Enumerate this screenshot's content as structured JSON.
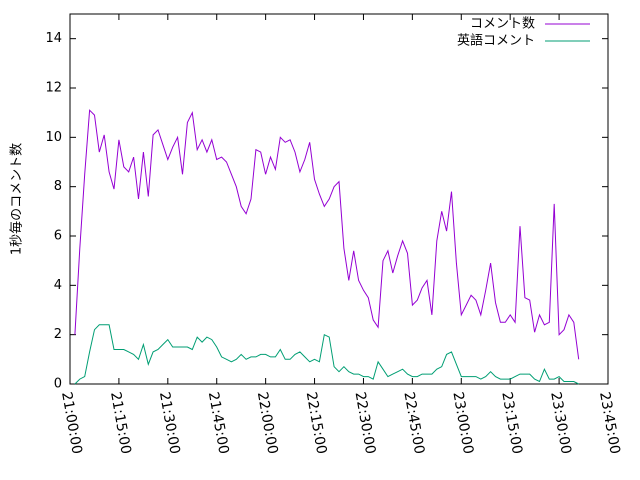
{
  "chart_data": {
    "type": "line",
    "y_label": "1秒毎のコメント数",
    "x": [
      "21:01:30",
      "21:03:00",
      "21:04:30",
      "21:06:00",
      "21:07:30",
      "21:09:00",
      "21:10:30",
      "21:12:00",
      "21:13:30",
      "21:15:00",
      "21:16:30",
      "21:18:00",
      "21:19:30",
      "21:21:00",
      "21:22:30",
      "21:24:00",
      "21:25:30",
      "21:27:00",
      "21:28:30",
      "21:30:00",
      "21:31:30",
      "21:33:00",
      "21:34:30",
      "21:36:00",
      "21:37:30",
      "21:39:00",
      "21:40:30",
      "21:42:00",
      "21:43:30",
      "21:45:00",
      "21:46:30",
      "21:48:00",
      "21:49:30",
      "21:51:00",
      "21:52:30",
      "21:54:00",
      "21:55:30",
      "21:57:00",
      "21:58:30",
      "22:00:00",
      "22:01:30",
      "22:03:00",
      "22:04:30",
      "22:06:00",
      "22:07:30",
      "22:09:00",
      "22:10:30",
      "22:12:00",
      "22:13:30",
      "22:15:00",
      "22:16:30",
      "22:18:00",
      "22:19:30",
      "22:21:00",
      "22:22:30",
      "22:24:00",
      "22:25:30",
      "22:27:00",
      "22:28:30",
      "22:30:00",
      "22:31:30",
      "22:33:00",
      "22:34:30",
      "22:36:00",
      "22:37:30",
      "22:39:00",
      "22:40:30",
      "22:42:00",
      "22:43:30",
      "22:45:00",
      "22:46:30",
      "22:48:00",
      "22:49:30",
      "22:51:00",
      "22:52:30",
      "22:54:00",
      "22:55:30",
      "22:57:00",
      "22:58:30",
      "23:00:00",
      "23:01:30",
      "23:03:00",
      "23:04:30",
      "23:06:00",
      "23:07:30",
      "23:09:00",
      "23:10:30",
      "23:12:00",
      "23:13:30",
      "23:15:00",
      "23:16:30",
      "23:18:00",
      "23:19:30",
      "23:21:00",
      "23:22:30",
      "23:24:00",
      "23:25:30",
      "23:27:00",
      "23:28:30",
      "23:30:00",
      "23:31:30",
      "23:33:00",
      "23:34:30",
      "23:36:00"
    ],
    "series": [
      {
        "name": "コメント数",
        "color": "#9400d3",
        "values": [
          2.0,
          5.5,
          8.5,
          11.1,
          10.9,
          9.4,
          10.1,
          8.6,
          7.9,
          9.9,
          8.8,
          8.6,
          9.2,
          7.5,
          9.4,
          7.6,
          10.1,
          10.3,
          9.7,
          9.1,
          9.6,
          10.0,
          8.5,
          10.6,
          11.0,
          9.5,
          9.9,
          9.4,
          9.9,
          9.1,
          9.2,
          9.0,
          8.5,
          8.0,
          7.2,
          6.9,
          7.5,
          9.5,
          9.4,
          8.5,
          9.2,
          8.7,
          10.0,
          9.8,
          9.9,
          9.4,
          8.6,
          9.1,
          9.8,
          8.3,
          7.7,
          7.2,
          7.5,
          8.0,
          8.2,
          5.5,
          4.2,
          5.4,
          4.2,
          3.8,
          3.5,
          2.6,
          2.3,
          5.0,
          5.4,
          4.5,
          5.2,
          5.8,
          5.3,
          3.2,
          3.4,
          3.9,
          4.2,
          2.8,
          5.8,
          7.0,
          6.2,
          7.8,
          4.9,
          2.8,
          3.2,
          3.6,
          3.4,
          2.8,
          3.8,
          4.9,
          3.3,
          2.5,
          2.5,
          2.8,
          2.5,
          6.4,
          3.5,
          3.4,
          2.1,
          2.8,
          2.4,
          2.5,
          7.3,
          2.0,
          2.2,
          2.8,
          2.5,
          1.0
        ]
      },
      {
        "name": "英語コメント",
        "color": "#009e73",
        "values": [
          0,
          0.2,
          0.3,
          1.3,
          2.2,
          2.4,
          2.4,
          2.4,
          1.4,
          1.4,
          1.4,
          1.3,
          1.2,
          1.0,
          1.6,
          0.8,
          1.3,
          1.4,
          1.6,
          1.8,
          1.5,
          1.5,
          1.5,
          1.5,
          1.4,
          1.9,
          1.7,
          1.9,
          1.8,
          1.5,
          1.1,
          1.0,
          0.9,
          1.0,
          1.2,
          1.0,
          1.1,
          1.1,
          1.2,
          1.2,
          1.1,
          1.1,
          1.4,
          1.0,
          1.0,
          1.2,
          1.3,
          1.1,
          0.9,
          1.0,
          0.9,
          2.0,
          1.9,
          0.7,
          0.5,
          0.7,
          0.5,
          0.4,
          0.4,
          0.3,
          0.3,
          0.2,
          0.9,
          0.6,
          0.3,
          0.4,
          0.5,
          0.6,
          0.4,
          0.3,
          0.3,
          0.4,
          0.4,
          0.4,
          0.6,
          0.7,
          1.2,
          1.3,
          0.8,
          0.3,
          0.3,
          0.3,
          0.3,
          0.2,
          0.3,
          0.5,
          0.3,
          0.2,
          0.2,
          0.2,
          0.3,
          0.4,
          0.4,
          0.4,
          0.2,
          0.1,
          0.6,
          0.2,
          0.2,
          0.3,
          0.1,
          0.1,
          0.1,
          0
        ]
      }
    ],
    "xlim": [
      "21:00:00",
      "23:45:00"
    ],
    "xticks": [
      "21:00:00",
      "21:15:00",
      "21:30:00",
      "21:45:00",
      "22:00:00",
      "22:15:00",
      "22:30:00",
      "22:45:00",
      "23:00:00",
      "23:15:00",
      "23:30:00",
      "23:45:00"
    ],
    "ylim": [
      0,
      15
    ],
    "yticks": [
      0,
      2,
      4,
      6,
      8,
      10,
      12,
      14
    ],
    "legend": "top-right"
  }
}
